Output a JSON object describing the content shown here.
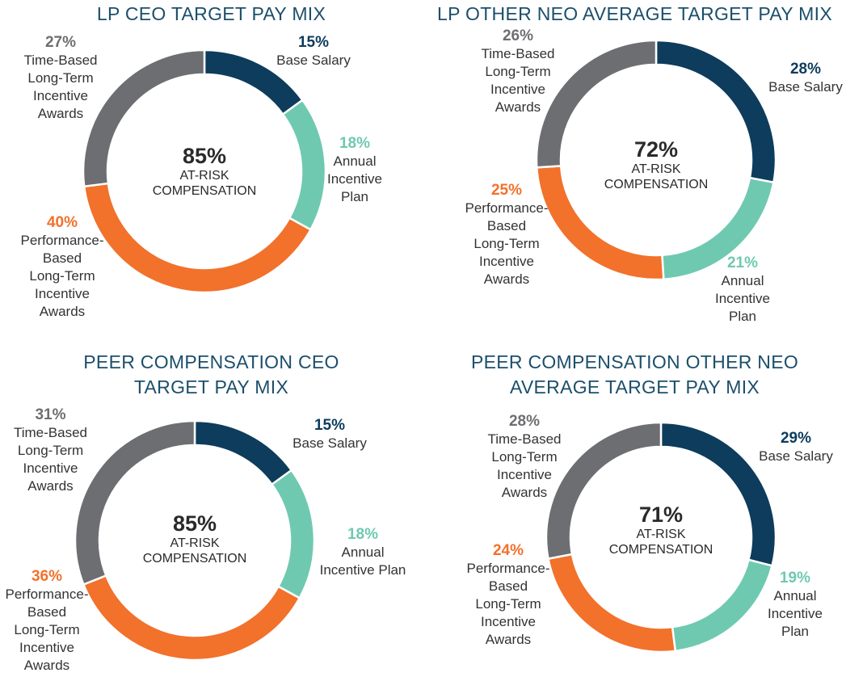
{
  "colors": {
    "base": "#0d3c5c",
    "annual": "#6fc9b0",
    "perf": "#f2712b",
    "time": "#6d6e71",
    "title": "#1c4f6b"
  },
  "chart_data": [
    {
      "type": "pie",
      "title": "LP CEO TARGET PAY MIX",
      "center_value": "85%",
      "center_label_1": "AT-RISK",
      "center_label_2": "COMPENSATION",
      "slices": [
        {
          "name": "Base Salary",
          "value": 15,
          "pct": "15%",
          "color_key": "base",
          "lines": [
            "Base Salary"
          ]
        },
        {
          "name": "Annual Incentive Plan",
          "value": 18,
          "pct": "18%",
          "color_key": "annual",
          "lines": [
            "Annual",
            "Incentive",
            "Plan"
          ]
        },
        {
          "name": "Performance-Based Long-Term Incentive Awards",
          "value": 40,
          "pct": "40%",
          "color_key": "perf",
          "lines": [
            "Performance-",
            "Based",
            "Long-Term",
            "Incentive",
            "Awards"
          ]
        },
        {
          "name": "Time-Based Long-Term Incentive Awards",
          "value": 27,
          "pct": "27%",
          "color_key": "time",
          "lines": [
            "Time-Based",
            "Long-Term",
            "Incentive",
            "Awards"
          ]
        }
      ]
    },
    {
      "type": "pie",
      "title": "LP OTHER NEO AVERAGE TARGET PAY MIX",
      "center_value": "72%",
      "center_label_1": "AT-RISK",
      "center_label_2": "COMPENSATION",
      "slices": [
        {
          "name": "Base Salary",
          "value": 28,
          "pct": "28%",
          "color_key": "base",
          "lines": [
            "Base Salary"
          ]
        },
        {
          "name": "Annual Incentive Plan",
          "value": 21,
          "pct": "21%",
          "color_key": "annual",
          "lines": [
            "Annual",
            "Incentive",
            "Plan"
          ]
        },
        {
          "name": "Performance-Based Long-Term Incentive Awards",
          "value": 25,
          "pct": "25%",
          "color_key": "perf",
          "lines": [
            "Performance-",
            "Based",
            "Long-Term",
            "Incentive",
            "Awards"
          ]
        },
        {
          "name": "Time-Based Long-Term Incentive Awards",
          "value": 26,
          "pct": "26%",
          "color_key": "time",
          "lines": [
            "Time-Based",
            "Long-Term",
            "Incentive",
            "Awards"
          ]
        }
      ]
    },
    {
      "type": "pie",
      "title_lines": [
        "PEER COMPENSATION CEO",
        "TARGET PAY MIX"
      ],
      "center_value": "85%",
      "center_label_1": "AT-RISK",
      "center_label_2": "COMPENSATION",
      "slices": [
        {
          "name": "Base Salary",
          "value": 15,
          "pct": "15%",
          "color_key": "base",
          "lines": [
            "Base Salary"
          ]
        },
        {
          "name": "Annual Incentive Plan",
          "value": 18,
          "pct": "18%",
          "color_key": "annual",
          "lines": [
            "Annual",
            "Incentive Plan"
          ]
        },
        {
          "name": "Performance-Based Long-Term Incentive Awards",
          "value": 36,
          "pct": "36%",
          "color_key": "perf",
          "lines": [
            "Performance-",
            "Based",
            "Long-Term",
            "Incentive",
            "Awards"
          ]
        },
        {
          "name": "Time-Based Long-Term Incentive Awards",
          "value": 31,
          "pct": "31%",
          "color_key": "time",
          "lines": [
            "Time-Based",
            "Long-Term",
            "Incentive",
            "Awards"
          ]
        }
      ]
    },
    {
      "type": "pie",
      "title_lines": [
        "PEER COMPENSATION OTHER NEO",
        "AVERAGE TARGET PAY MIX"
      ],
      "center_value": "71%",
      "center_label_1": "AT-RISK",
      "center_label_2": "COMPENSATION",
      "slices": [
        {
          "name": "Base Salary",
          "value": 29,
          "pct": "29%",
          "color_key": "base",
          "lines": [
            "Base Salary"
          ]
        },
        {
          "name": "Annual Incentive Plan",
          "value": 19,
          "pct": "19%",
          "color_key": "annual",
          "lines": [
            "Annual",
            "Incentive",
            "Plan"
          ]
        },
        {
          "name": "Performance-Based Long-Term Incentive Awards",
          "value": 24,
          "pct": "24%",
          "color_key": "perf",
          "lines": [
            "Performance-",
            "Based",
            "Long-Term",
            "Incentive",
            "Awards"
          ]
        },
        {
          "name": "Time-Based Long-Term Incentive Awards",
          "value": 28,
          "pct": "28%",
          "color_key": "time",
          "lines": [
            "Time-Based",
            "Long-Term",
            "Incentive",
            "Awards"
          ]
        }
      ]
    }
  ]
}
